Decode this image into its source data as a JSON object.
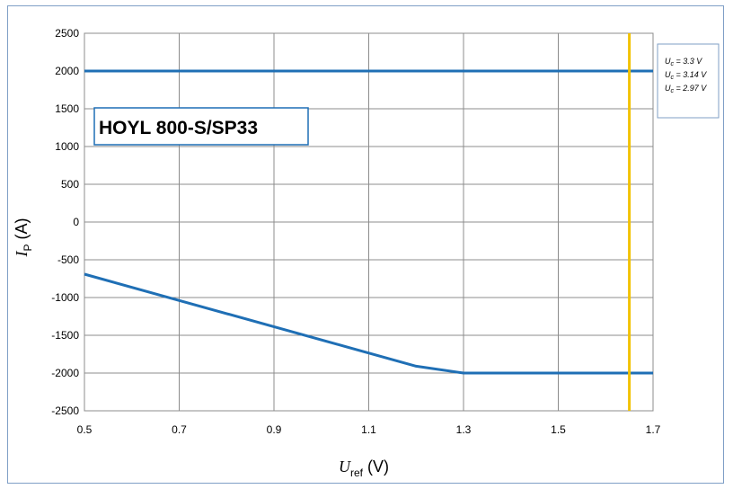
{
  "chart_data": {
    "type": "line",
    "title": "HOYL 800-S/SP33",
    "xlabel": {
      "symbol": "U",
      "subscript": "ref",
      "unit": "(V)"
    },
    "ylabel": {
      "symbol": "I",
      "subscript": "P",
      "unit": "(A)"
    },
    "xlim": [
      0.5,
      1.7
    ],
    "ylim": [
      -2500,
      2500
    ],
    "xticks": [
      "0.5",
      "0.7",
      "0.9",
      "1.1",
      "1.3",
      "1.5",
      "1.7"
    ],
    "yticks": [
      "2500",
      "2000",
      "1500",
      "1000",
      "500",
      "0",
      "-500",
      "-1000",
      "-1500",
      "-2000",
      "-2500"
    ],
    "grid": true,
    "legend_position": "right",
    "series": [
      {
        "name": "Uc = 3.3 V",
        "legend_main": "U",
        "legend_sub": "c",
        "legend_value": " = 3.3 V",
        "color": "#1f6fb5",
        "x": [
          0.5,
          1.7
        ],
        "y": [
          2000,
          2000
        ]
      },
      {
        "name": "Uc = 3.14 V",
        "legend_main": "U",
        "legend_sub": "c",
        "legend_value": " = 3.14 V",
        "color": "#1f6fb5",
        "x": [
          0.5,
          1.2,
          1.3,
          1.7
        ],
        "y": [
          -690,
          -1910,
          -2000,
          -2000
        ]
      },
      {
        "name": "Uc = 2.97 V",
        "legend_main": "U",
        "legend_sub": "c",
        "legend_value": " = 2.97 V",
        "color": "#f2c200",
        "x": [
          1.65,
          1.65
        ],
        "y": [
          2500,
          -2500
        ]
      }
    ]
  }
}
